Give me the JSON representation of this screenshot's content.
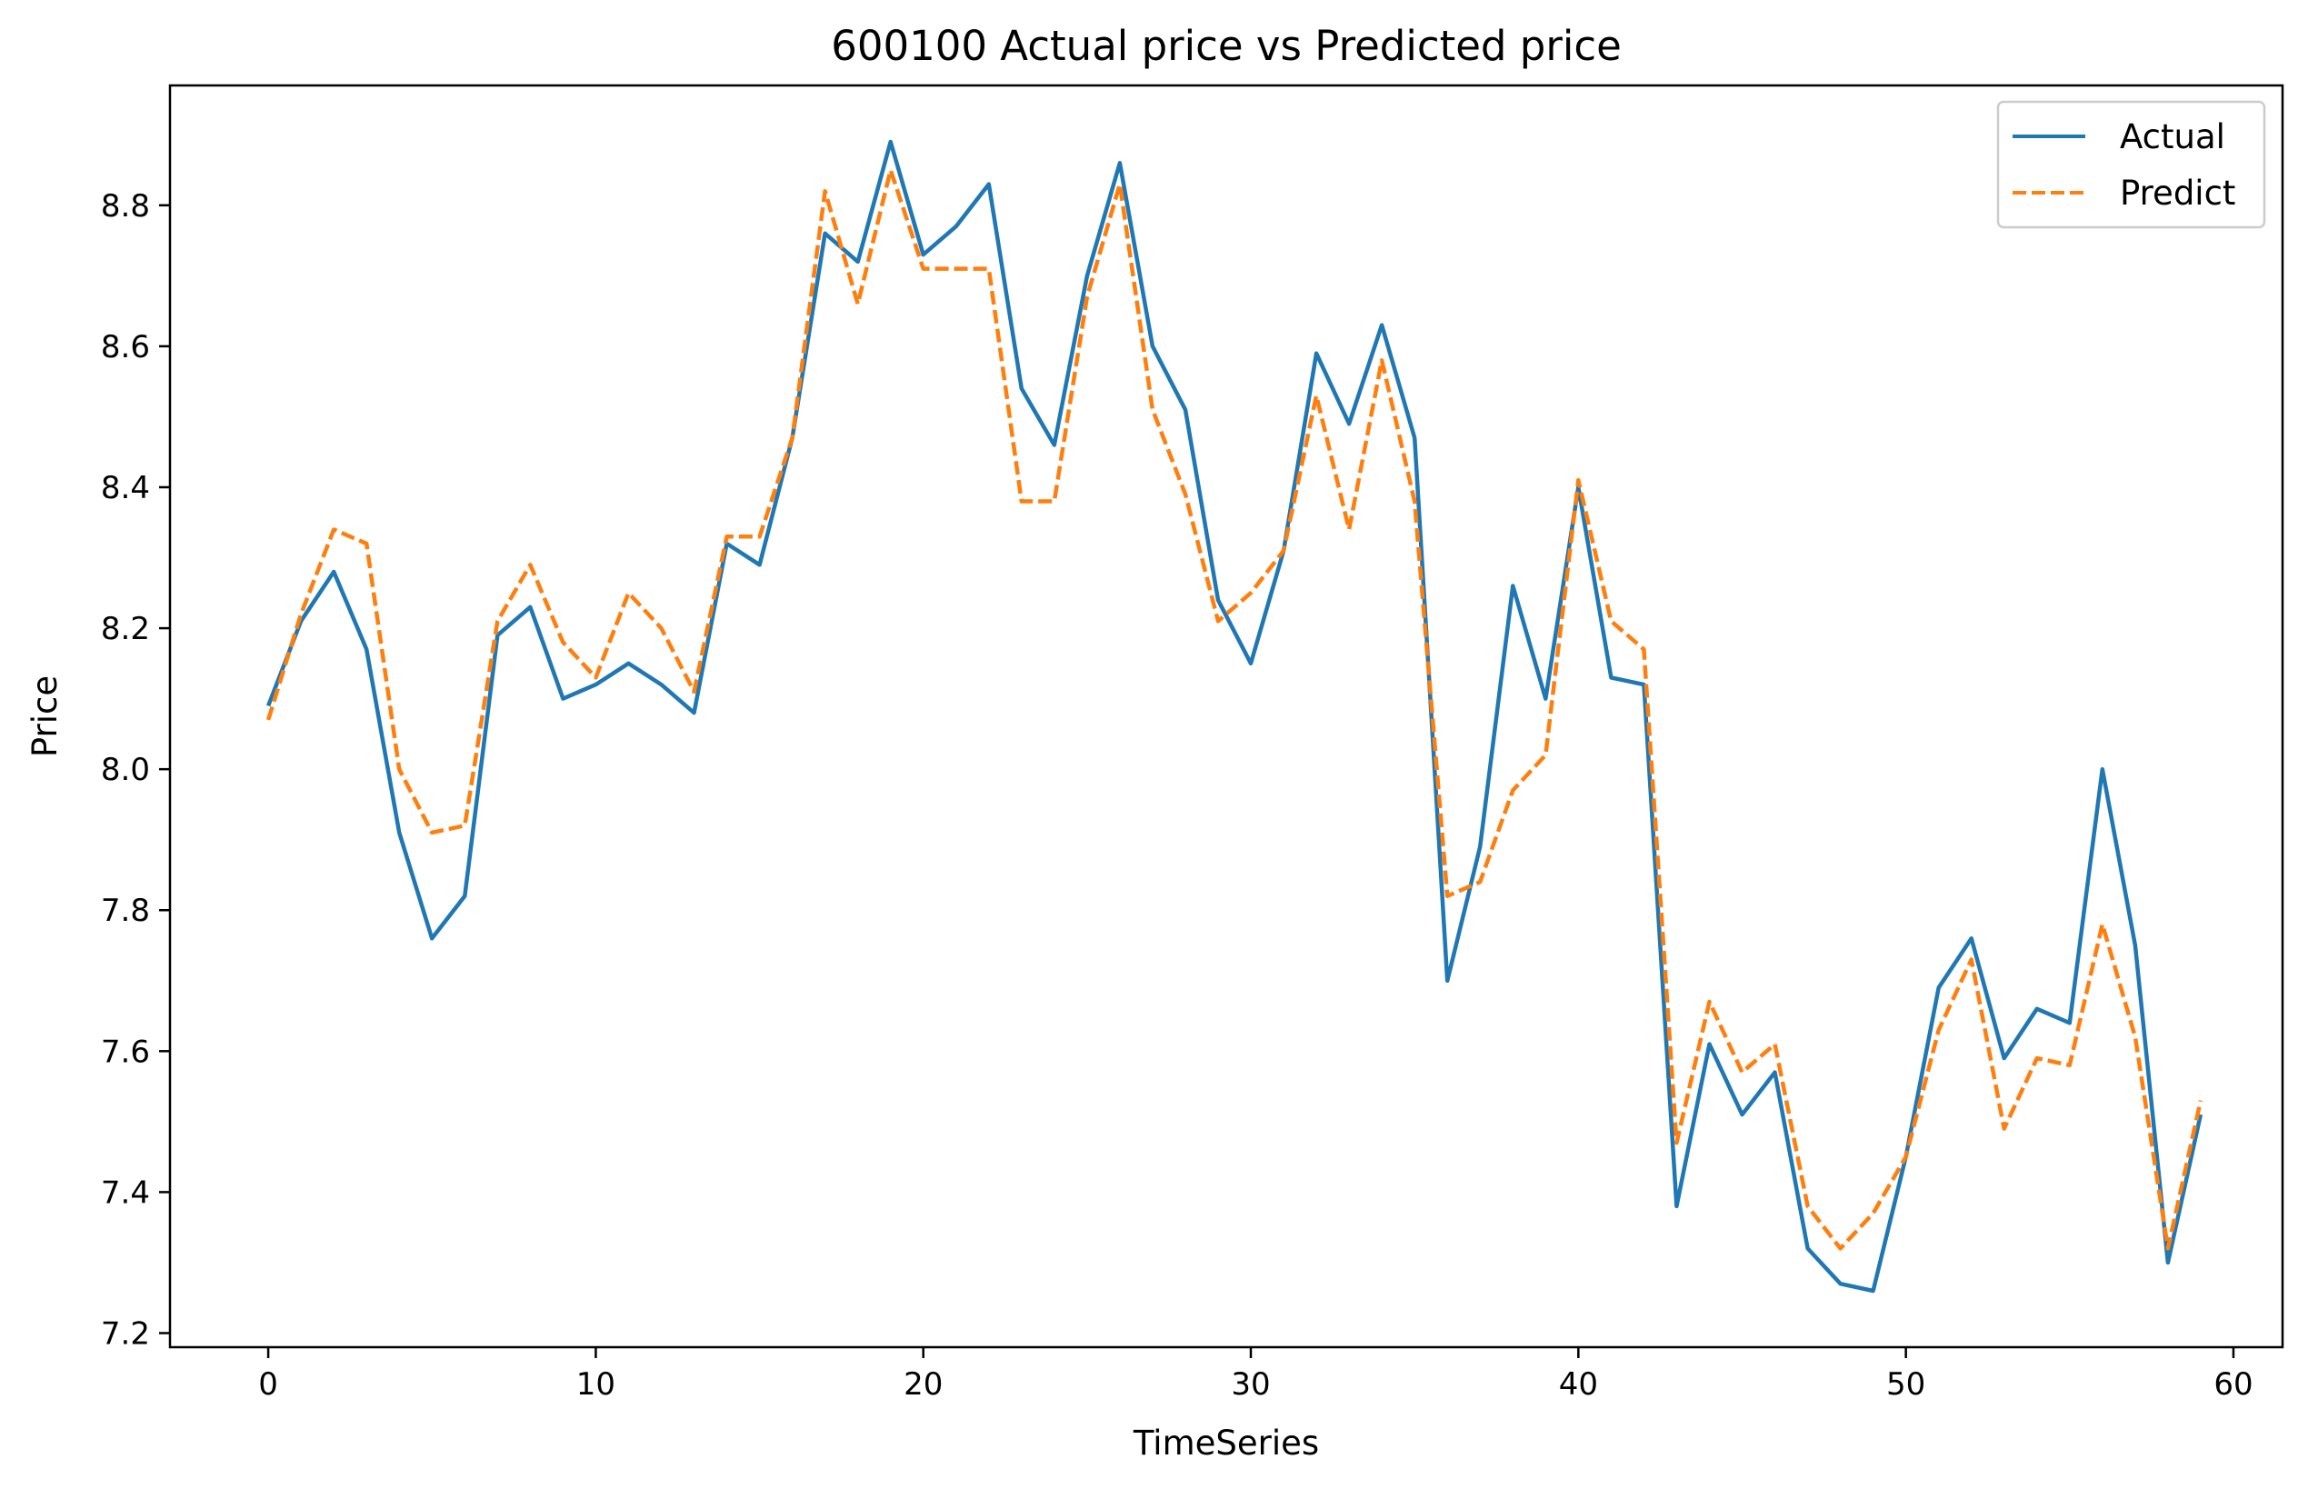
{
  "chart_data": {
    "type": "line",
    "title": "600100 Actual price vs Predicted price",
    "xlabel": "TimeSeries",
    "ylabel": "Price",
    "xlim": [
      -3,
      61.5
    ],
    "ylim": [
      7.18,
      8.97
    ],
    "xticks": [
      0,
      10,
      20,
      30,
      40,
      50,
      60
    ],
    "yticks": [
      7.2,
      7.4,
      7.6,
      7.8,
      8.0,
      8.2,
      8.4,
      8.6,
      8.8
    ],
    "xtick_labels": [
      "0",
      "10",
      "20",
      "30",
      "40",
      "50",
      "60"
    ],
    "ytick_labels": [
      "7.2",
      "7.4",
      "7.6",
      "7.8",
      "8.0",
      "8.2",
      "8.4",
      "8.6",
      "8.8"
    ],
    "grid": false,
    "legend_position": "top-right",
    "x": [
      0,
      1,
      2,
      3,
      4,
      5,
      6,
      7,
      8,
      9,
      10,
      11,
      12,
      13,
      14,
      15,
      16,
      17,
      18,
      19,
      20,
      21,
      22,
      23,
      24,
      25,
      26,
      27,
      28,
      29,
      30,
      31,
      32,
      33,
      34,
      35,
      36,
      37,
      38,
      39,
      40,
      41,
      42,
      43,
      44,
      45,
      46,
      47,
      48,
      49,
      50,
      51,
      52,
      53,
      54,
      55,
      56,
      57,
      58,
      59
    ],
    "series": [
      {
        "name": "Actual",
        "color": "#1f77b4",
        "style": "solid",
        "values": [
          8.09,
          8.21,
          8.28,
          8.17,
          7.91,
          7.76,
          7.82,
          8.19,
          8.23,
          8.1,
          8.12,
          8.15,
          8.12,
          8.08,
          8.32,
          8.29,
          8.47,
          8.76,
          8.72,
          8.89,
          8.73,
          8.77,
          8.83,
          8.54,
          8.46,
          8.7,
          8.86,
          8.6,
          8.51,
          8.24,
          8.15,
          8.31,
          8.59,
          8.49,
          8.63,
          8.47,
          7.7,
          7.89,
          8.26,
          8.1,
          8.4,
          8.13,
          8.12,
          7.38,
          7.61,
          7.51,
          7.57,
          7.32,
          7.27,
          7.26,
          7.45,
          7.69,
          7.76,
          7.59,
          7.66,
          7.64,
          8.0,
          7.75,
          7.3,
          7.51
        ]
      },
      {
        "name": "Predict",
        "color": "#ff7f0e",
        "style": "dashed",
        "values": [
          8.07,
          8.22,
          8.34,
          8.32,
          8.0,
          7.91,
          7.92,
          8.21,
          8.29,
          8.18,
          8.13,
          8.25,
          8.2,
          8.11,
          8.33,
          8.33,
          8.47,
          8.82,
          8.66,
          8.85,
          8.71,
          8.71,
          8.71,
          8.38,
          8.38,
          8.67,
          8.83,
          8.51,
          8.39,
          8.21,
          8.25,
          8.31,
          8.53,
          8.34,
          8.58,
          8.38,
          7.82,
          7.84,
          7.97,
          8.02,
          8.41,
          8.21,
          8.17,
          7.47,
          7.67,
          7.57,
          7.61,
          7.38,
          7.32,
          7.37,
          7.45,
          7.63,
          7.73,
          7.49,
          7.59,
          7.58,
          7.78,
          7.62,
          7.32,
          7.53
        ]
      }
    ]
  }
}
